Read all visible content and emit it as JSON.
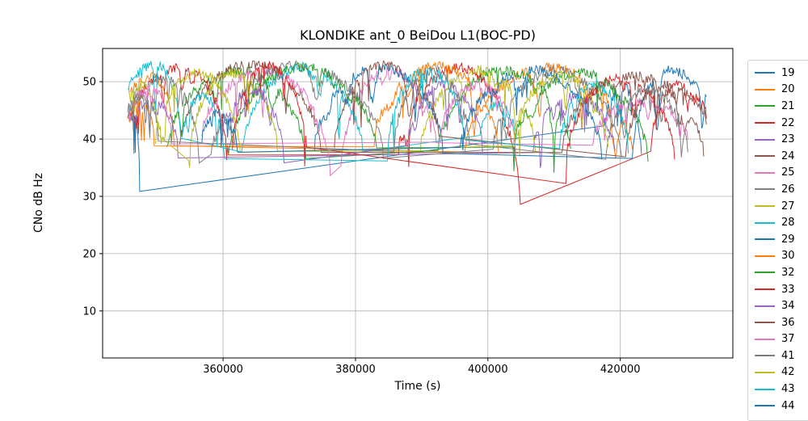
{
  "chart_data": {
    "type": "line",
    "title": "KLONDIKE ant_0 BeiDou L1(BOC-PD)",
    "xlabel": "Time (s)",
    "ylabel": "CNo dB Hz",
    "xlim": [
      341800,
      437000
    ],
    "ylim": [
      1.8,
      55.8
    ],
    "xticks": [
      360000,
      380000,
      400000,
      420000
    ],
    "yticks": [
      10,
      20,
      30,
      40,
      50
    ],
    "grid": true,
    "grid_color": "#b0b0b0",
    "axis_color": "#000000",
    "legend_position": "right-outside",
    "value_range_note": "CNo arcs between ~29 and ~53 dB Hz",
    "series": [
      {
        "name": "19",
        "color": "#1f77b4",
        "passes": [
          [
            345800,
            347400,
            44,
            46,
            31.5
          ],
          [
            417600,
            423200,
            49,
            42,
            36.5
          ]
        ]
      },
      {
        "name": "20",
        "color": "#ff7f0e",
        "passes": [
          [
            345900,
            352600,
            51,
            48,
            39
          ],
          [
            396500,
            421800,
            52.5,
            38,
            37.5
          ]
        ]
      },
      {
        "name": "21",
        "color": "#2ca02c",
        "passes": [
          [
            351500,
            372500,
            52,
            38,
            37
          ],
          [
            392500,
            412500,
            52,
            37.5,
            38
          ]
        ]
      },
      {
        "name": "22",
        "color": "#d62728",
        "passes": [
          [
            346100,
            360800,
            52.5,
            43,
            36.5
          ],
          [
            386500,
            404900,
            52.5,
            37.5,
            29
          ],
          [
            424600,
            433000,
            49.5,
            37.5,
            44
          ]
        ]
      },
      {
        "name": "23",
        "color": "#9467bd",
        "passes": [
          [
            345700,
            353200,
            46.5,
            43,
            37.5
          ],
          [
            406800,
            419200,
            47.5,
            38,
            38
          ]
        ]
      },
      {
        "name": "24",
        "color": "#8c564b",
        "passes": [
          [
            353400,
            374800,
            53,
            38.5,
            38
          ],
          [
            411200,
            432600,
            51,
            38,
            37
          ]
        ]
      },
      {
        "name": "25",
        "color": "#e377c2",
        "passes": [
          [
            356800,
            376200,
            52,
            41,
            33.5
          ],
          [
            377800,
            392200,
            52,
            34.5,
            39
          ],
          [
            415800,
            430200,
            46.5,
            39,
            40
          ]
        ]
      },
      {
        "name": "26",
        "color": "#7f7f7f",
        "passes": [
          [
            345600,
            356400,
            50.5,
            45,
            36
          ],
          [
            358200,
            384200,
            53,
            36.5,
            37.5
          ],
          [
            400800,
            420200,
            52,
            38,
            36
          ]
        ]
      },
      {
        "name": "27",
        "color": "#bcbd22",
        "passes": [
          [
            345600,
            350200,
            49.5,
            48,
            40
          ],
          [
            354800,
            368200,
            51.5,
            36.5,
            38
          ],
          [
            389800,
            407200,
            52,
            38,
            38
          ]
        ]
      },
      {
        "name": "28",
        "color": "#17becf",
        "passes": [
          [
            345600,
            353600,
            53,
            48.5,
            40
          ],
          [
            362800,
            381200,
            52.5,
            37,
            37
          ],
          [
            398800,
            404200,
            46,
            40,
            40
          ]
        ]
      },
      {
        "name": "29",
        "color": "#1f77b4",
        "passes": [
          [
            373800,
            393200,
            52.5,
            38,
            38
          ],
          [
            421800,
            433000,
            52,
            36,
            47
          ]
        ]
      },
      {
        "name": "30",
        "color": "#ff7f0e",
        "passes": [
          [
            345600,
            349600,
            46.5,
            44,
            39
          ],
          [
            382800,
            401600,
            52.8,
            39,
            38
          ]
        ]
      },
      {
        "name": "32",
        "color": "#2ca02c",
        "passes": [
          [
            360800,
            383200,
            52.5,
            37,
            38
          ],
          [
            403800,
            424200,
            51.5,
            38,
            36
          ]
        ]
      },
      {
        "name": "33",
        "color": "#d62728",
        "passes": [
          [
            361400,
            372600,
            52.8,
            38,
            38
          ],
          [
            411800,
            428200,
            50.5,
            36,
            37
          ]
        ]
      },
      {
        "name": "34",
        "color": "#9467bd",
        "passes": [
          [
            359800,
            369200,
            48.5,
            40,
            36
          ],
          [
            387800,
            399200,
            49.5,
            38,
            38
          ]
        ]
      },
      {
        "name": "36",
        "color": "#8c564b",
        "passes": [
          [
            376800,
            392600,
            53,
            38,
            40
          ],
          [
            420800,
            433000,
            49.5,
            37,
            43
          ]
        ]
      },
      {
        "name": "37",
        "color": "#e377c2",
        "passes": [
          [
            345800,
            352200,
            48.5,
            44,
            40
          ],
          [
            392800,
            404200,
            49.5,
            40,
            38
          ]
        ]
      },
      {
        "name": "41",
        "color": "#7f7f7f",
        "passes": [
          [
            345600,
            350200,
            47.5,
            43,
            40
          ],
          [
            385800,
            397200,
            52,
            38,
            39
          ],
          [
            417800,
            430200,
            48.5,
            37,
            38
          ]
        ]
      },
      {
        "name": "42",
        "color": "#bcbd22",
        "passes": [
          [
            349800,
            362600,
            51.5,
            40,
            37
          ],
          [
            403800,
            418200,
            51,
            39,
            38
          ]
        ]
      },
      {
        "name": "43",
        "color": "#17becf",
        "passes": [
          [
            353800,
            360200,
            47.5,
            40,
            36
          ],
          [
            384800,
            396600,
            52,
            37,
            39
          ],
          [
            410800,
            421200,
            49.5,
            38,
            38
          ]
        ]
      },
      {
        "name": "44",
        "color": "#1f77b4",
        "passes": [
          [
            356800,
            362200,
            44.5,
            40,
            38
          ],
          [
            395800,
            417200,
            52,
            38,
            37
          ]
        ]
      }
    ]
  }
}
